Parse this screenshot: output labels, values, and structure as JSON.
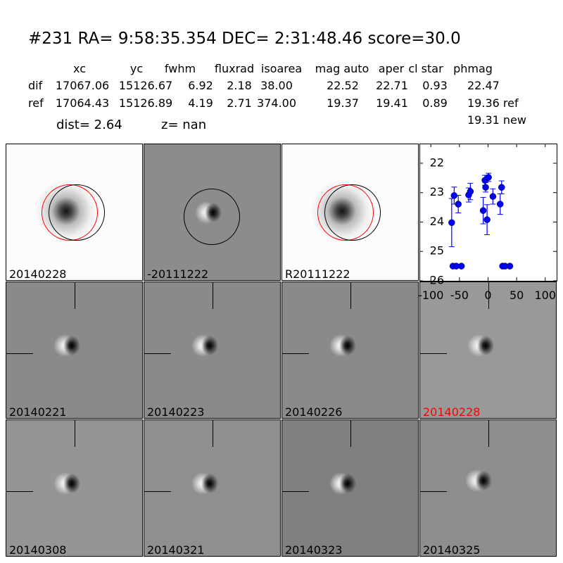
{
  "header": {
    "title": "#231   RA= 9:58:35.354 DEC= 2:31:48.46      score=30.0"
  },
  "table": {
    "columns": [
      "xc",
      "yc",
      "fwhm",
      "fluxrad",
      "isoarea",
      "mag auto",
      "aper",
      "cl star",
      "phmag"
    ],
    "rows": [
      {
        "label": "dif",
        "values": [
          "17067.06",
          "15126.67",
          "6.92",
          "2.18",
          "38.00",
          "22.52",
          "22.71",
          "0.93",
          "22.47"
        ]
      },
      {
        "label": "ref",
        "values": [
          "17064.43",
          "15126.89",
          "4.19",
          "2.71",
          "374.00",
          "19.37",
          "19.41",
          "0.89",
          "19.36 ref"
        ]
      }
    ],
    "extra": "19.31 new",
    "dist": "dist=  2.64",
    "z": "z=   nan"
  },
  "stamps": [
    {
      "label": "20140228",
      "bg": "#fcfcfc",
      "type": "ref",
      "circles": [
        "red",
        "black"
      ]
    },
    {
      "label": "-20111222",
      "bg": "#8c8c8c",
      "type": "dif",
      "circles": [
        "black"
      ]
    },
    {
      "label": "R20111222",
      "bg": "#fcfcfc",
      "type": "ref",
      "circles": [
        "red",
        "black"
      ]
    },
    {
      "label": "",
      "type": "plot"
    },
    {
      "label": "20140221",
      "bg": "#8a8a8a",
      "type": "dif"
    },
    {
      "label": "20140223",
      "bg": "#8a8a8a",
      "type": "dif"
    },
    {
      "label": "20140226",
      "bg": "#8a8a8a",
      "type": "dif"
    },
    {
      "label": "20140228",
      "bg": "#999",
      "type": "dif",
      "label_color": "#ff0000"
    },
    {
      "label": "20140308",
      "bg": "#959595",
      "type": "dif"
    },
    {
      "label": "20140321",
      "bg": "#8f8f8f",
      "type": "dif"
    },
    {
      "label": "20140323",
      "bg": "#808080",
      "type": "dif"
    },
    {
      "label": "20140325",
      "bg": "#8e8e8e",
      "type": "dif"
    }
  ],
  "chart_data": {
    "type": "scatter",
    "xlim": [
      -120,
      120
    ],
    "ylim": [
      21.33,
      26
    ],
    "y_inverted": true,
    "xticks": [
      "-100",
      "-50",
      "0",
      "50",
      "100"
    ],
    "xtick_values": [
      -100,
      -50,
      0,
      50,
      100
    ],
    "yticks": [
      "22",
      "23",
      "24",
      "25",
      "26"
    ],
    "ytick_values": [
      22,
      23,
      24,
      25,
      26
    ],
    "color": "#0000ff",
    "points": [
      {
        "x": -63.6,
        "y": 24.02,
        "err": 0.82
      },
      {
        "x": -59.3,
        "y": 23.1,
        "err": 0.29
      },
      {
        "x": -52.1,
        "y": 23.39,
        "err": 0.3
      },
      {
        "x": -33.9,
        "y": 23.08,
        "err": 0.24
      },
      {
        "x": -30.9,
        "y": 22.96,
        "err": 0.28
      },
      {
        "x": -8.5,
        "y": 23.61,
        "err": 0.45
      },
      {
        "x": -5.5,
        "y": 22.58,
        "err": 0.17
      },
      {
        "x": -4.2,
        "y": 22.82,
        "err": 0.16
      },
      {
        "x": -1.7,
        "y": 23.92,
        "err": 0.51
      },
      {
        "x": 0.8,
        "y": 22.48,
        "err": 0.14
      },
      {
        "x": 8.5,
        "y": 23.13,
        "err": 0.26
      },
      {
        "x": 21.2,
        "y": 23.39,
        "err": 0.35
      },
      {
        "x": 23.7,
        "y": 22.82,
        "err": 0.22
      },
      {
        "x": -61.4,
        "y": 25.5,
        "err": 0.03
      },
      {
        "x": -55.5,
        "y": 25.5,
        "err": 0.03
      },
      {
        "x": -46.6,
        "y": 25.5,
        "err": 0.03
      },
      {
        "x": 25.4,
        "y": 25.5,
        "err": 0.03
      },
      {
        "x": 29.7,
        "y": 25.5,
        "err": 0.03
      },
      {
        "x": 38.1,
        "y": 25.5,
        "err": 0.03
      }
    ]
  }
}
